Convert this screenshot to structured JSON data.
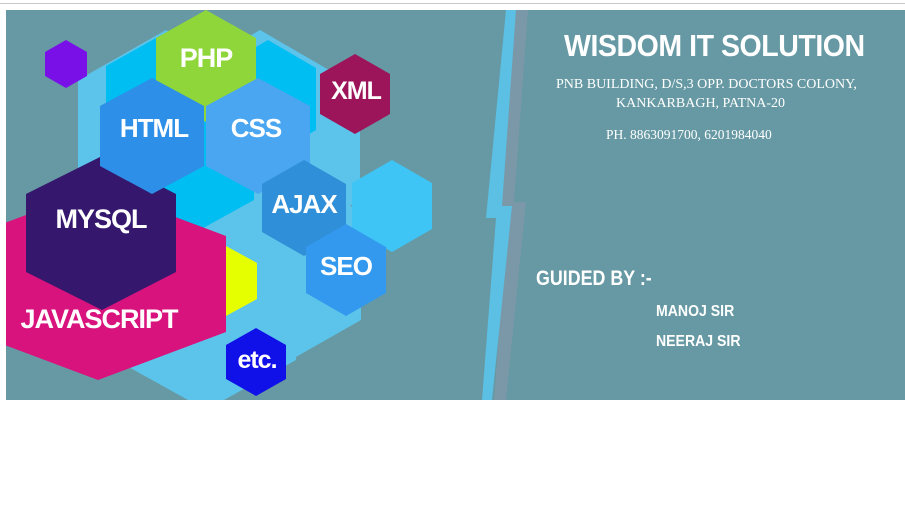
{
  "company": {
    "name": "WISDOM IT SOLUTION",
    "address_line1": "PNB BUILDING, D/S,3 OPP. DOCTORS COLONY,",
    "address_line2": "KANKARBAGH, PATNA-20",
    "phone": "PH. 8863091700, 6201984040"
  },
  "guidance": {
    "heading": "GUIDED BY :-",
    "guides": [
      "MANOJ SIR",
      "NEERAJ SIR"
    ]
  },
  "technologies": [
    {
      "label": "PHP",
      "color": "#8fd63a"
    },
    {
      "label": "HTML",
      "color": "#2d8fe8"
    },
    {
      "label": "CSS",
      "color": "#4aa6f0"
    },
    {
      "label": "XML",
      "color": "#9c1459"
    },
    {
      "label": "AJAX",
      "color": "#2f8fd8"
    },
    {
      "label": "SEO",
      "color": "#3399ee"
    },
    {
      "label": "MYSQL",
      "color": "#35186e"
    },
    {
      "label": "JAVASCRIPT",
      "color": "#d8137d"
    },
    {
      "label": "etc.",
      "color": "#1010e8"
    }
  ],
  "colors": {
    "banner_bg": "#6699a3",
    "light_blue": "#5cc4ea",
    "cyan": "#00bdf2",
    "sky": "#3ec5f5",
    "yellow": "#e6ff00",
    "violet": "#7a10e8",
    "slash_light": "#5bc0e3",
    "slash_dark": "#7a98a8"
  }
}
